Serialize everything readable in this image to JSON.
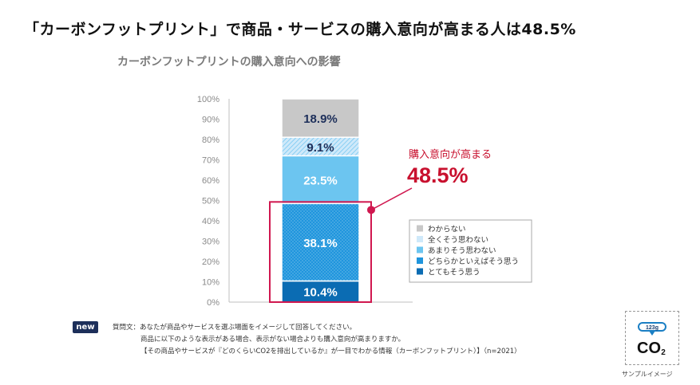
{
  "headline": "「カーボンフットプリント」で商品・サービスの購入意向が高まる人は48.5%",
  "note": {
    "badge": "new",
    "line1": "質問文：あなたが商品やサービスを選ぶ場面をイメージして回答してください。",
    "line2": "商品に以下のような表示がある場合、表示がない場合よりも購入意向が高まりますか。",
    "line3": "【その商品やサービスが『どのくらいCO2を排出しているか』が一目でわかる情報（カーボンフットプリント）】（n=2021）"
  },
  "sample": {
    "label": "サンプルイメージ",
    "badge_text": "123g",
    "co2_text": "CO",
    "co2_sub": "2"
  },
  "colors": {
    "gray": "#c8c8c8",
    "pale_blue": "#cfe9fa",
    "light_blue": "#6cc5f0",
    "mid_blue": "#1f95dd",
    "dark_blue": "#0b6cb3",
    "accent_red": "#c8102e",
    "frame_red": "#d0174f"
  },
  "chart_data": {
    "type": "bar",
    "title": "カーボンフットプリントの購入意向への影響",
    "stacked": true,
    "ylim": [
      0,
      100
    ],
    "yticks": [
      "0%",
      "10%",
      "20%",
      "30%",
      "40%",
      "50%",
      "60%",
      "70%",
      "80%",
      "90%",
      "100%"
    ],
    "series": [
      {
        "name": "とてもそう思う",
        "value": 10.4,
        "label": "10.4%",
        "color": "#0b6cb3"
      },
      {
        "name": "どちらかといえばそう思う",
        "value": 38.1,
        "label": "38.1%",
        "color": "#1f95dd"
      },
      {
        "name": "あまりそう思わない",
        "value": 23.5,
        "label": "23.5%",
        "color": "#6cc5f0"
      },
      {
        "name": "全くそう思わない",
        "value": 9.1,
        "label": "9.1%",
        "color": "#cfe9fa"
      },
      {
        "name": "わからない",
        "value": 18.9,
        "label": "18.9%",
        "color": "#c8c8c8"
      }
    ],
    "legend_order": [
      "わからない",
      "全くそう思わない",
      "あまりそう思わない",
      "どちらかといえばそう思う",
      "とてもそう思う"
    ],
    "legend_position": "right",
    "annotation": {
      "label": "購入意向が高まる",
      "value": "48.5%"
    }
  }
}
